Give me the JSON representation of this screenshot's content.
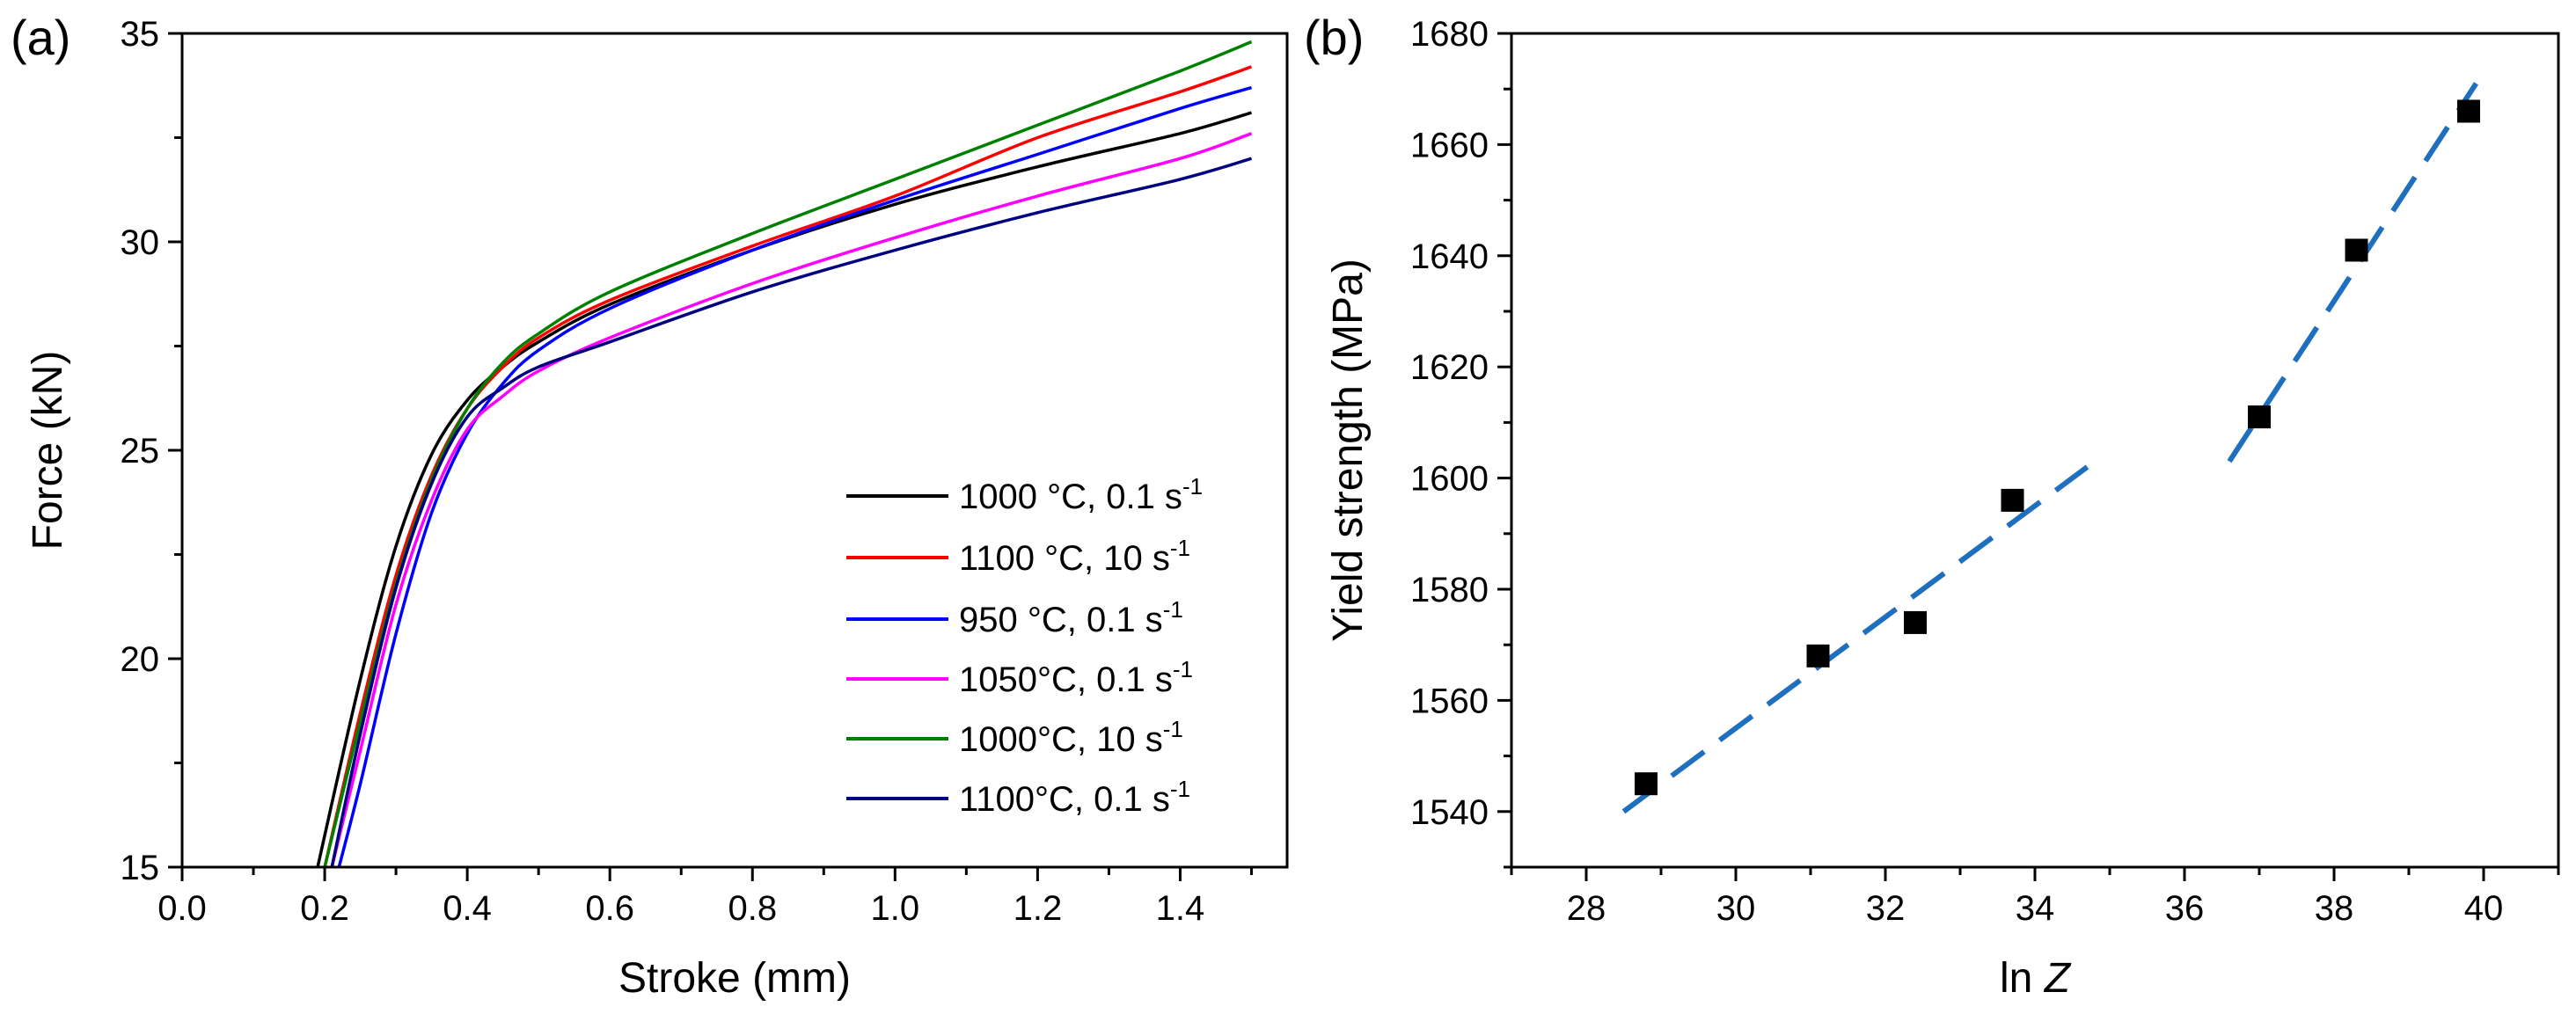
{
  "chart_data": [
    {
      "id": "a",
      "type": "line",
      "panel_label": "(a)",
      "xlabel": "Stroke (mm)",
      "ylabel": "Force (kN)",
      "xlim": [
        0.0,
        1.55
      ],
      "ylim": [
        15,
        35
      ],
      "xticks": [
        0.0,
        0.2,
        0.4,
        0.6,
        0.8,
        1.0,
        1.2,
        1.4
      ],
      "xtick_labels": [
        "0.0",
        "0.2",
        "0.4",
        "0.6",
        "0.8",
        "1.0",
        "1.2",
        "1.4"
      ],
      "yticks": [
        15,
        20,
        25,
        30,
        35
      ],
      "ytick_labels": [
        "15",
        "20",
        "25",
        "30",
        "35"
      ],
      "legend_position": "bottom-right",
      "legend_superscript": "-1",
      "series": [
        {
          "name": "1000 °C, 0.1 s",
          "color": "#000000",
          "x": [
            0.19,
            0.25,
            0.3,
            0.35,
            0.4,
            0.45,
            0.5,
            0.6,
            0.8,
            1.0,
            1.2,
            1.4,
            1.5
          ],
          "y": [
            15.0,
            19.5,
            22.7,
            24.9,
            26.2,
            27.0,
            27.6,
            28.5,
            29.8,
            30.9,
            31.8,
            32.6,
            33.1
          ]
        },
        {
          "name": "1100 °C, 10 s",
          "color": "#ff0000",
          "x": [
            0.2,
            0.25,
            0.3,
            0.35,
            0.4,
            0.45,
            0.5,
            0.6,
            0.8,
            1.0,
            1.2,
            1.4,
            1.5
          ],
          "y": [
            15.0,
            18.7,
            22.0,
            24.4,
            26.0,
            27.0,
            27.7,
            28.6,
            29.9,
            31.1,
            32.5,
            33.6,
            34.2
          ]
        },
        {
          "name": "950 °C, 0.1 s",
          "color": "#0000ff",
          "x": [
            0.22,
            0.25,
            0.3,
            0.35,
            0.4,
            0.45,
            0.5,
            0.6,
            0.8,
            1.0,
            1.2,
            1.4,
            1.5
          ],
          "y": [
            15.0,
            17.0,
            20.6,
            23.5,
            25.4,
            26.6,
            27.4,
            28.4,
            29.8,
            31.0,
            32.1,
            33.2,
            33.7
          ]
        },
        {
          "name": "1050°C, 0.1 s",
          "color": "#ff00ff",
          "x": [
            0.21,
            0.25,
            0.3,
            0.35,
            0.4,
            0.45,
            0.5,
            0.6,
            0.8,
            1.0,
            1.2,
            1.4,
            1.5
          ],
          "y": [
            15.0,
            17.8,
            21.3,
            23.8,
            25.5,
            26.3,
            26.9,
            27.7,
            29.0,
            30.1,
            31.1,
            32.0,
            32.6
          ]
        },
        {
          "name": "1000°C, 10 s",
          "color": "#008000",
          "x": [
            0.2,
            0.25,
            0.3,
            0.35,
            0.4,
            0.45,
            0.5,
            0.6,
            0.8,
            1.0,
            1.2,
            1.4,
            1.5
          ],
          "y": [
            15.0,
            18.5,
            21.8,
            24.3,
            26.0,
            27.1,
            27.8,
            28.8,
            30.2,
            31.5,
            32.8,
            34.1,
            34.8
          ]
        },
        {
          "name": "1100°C, 0.1 s",
          "color": "#000080",
          "x": [
            0.21,
            0.25,
            0.3,
            0.35,
            0.4,
            0.45,
            0.5,
            0.6,
            0.8,
            1.0,
            1.2,
            1.4,
            1.5
          ],
          "y": [
            15.0,
            18.2,
            21.7,
            24.2,
            25.8,
            26.5,
            27.0,
            27.6,
            28.8,
            29.8,
            30.7,
            31.5,
            32.0
          ]
        }
      ]
    },
    {
      "id": "b",
      "type": "scatter",
      "panel_label": "(b)",
      "xlabel_prefix": "ln ",
      "xlabel_var": "Z",
      "ylabel": "Yield strength (MPa)",
      "xlim": [
        27.0,
        41.0
      ],
      "ylim": [
        1530,
        1680
      ],
      "xticks": [
        28,
        30,
        32,
        34,
        36,
        38,
        40
      ],
      "xtick_labels": [
        "28",
        "30",
        "32",
        "34",
        "36",
        "38",
        "40"
      ],
      "yticks": [
        1540,
        1560,
        1580,
        1600,
        1620,
        1640,
        1660,
        1680
      ],
      "ytick_labels": [
        "1540",
        "1560",
        "1580",
        "1600",
        "1620",
        "1640",
        "1660",
        "1680"
      ],
      "points": {
        "color": "#000000",
        "x": [
          28.8,
          31.1,
          32.4,
          33.7,
          37.0,
          38.3,
          39.8
        ],
        "y": [
          1545,
          1568,
          1574,
          1596,
          1611,
          1641,
          1666
        ]
      },
      "fit_lines": [
        {
          "color": "#1f6fbf",
          "x": [
            28.5,
            34.7
          ],
          "y": [
            1540,
            1602
          ]
        },
        {
          "color": "#1f6fbf",
          "x": [
            36.6,
            39.9
          ],
          "y": [
            1603,
            1671
          ]
        }
      ]
    }
  ]
}
